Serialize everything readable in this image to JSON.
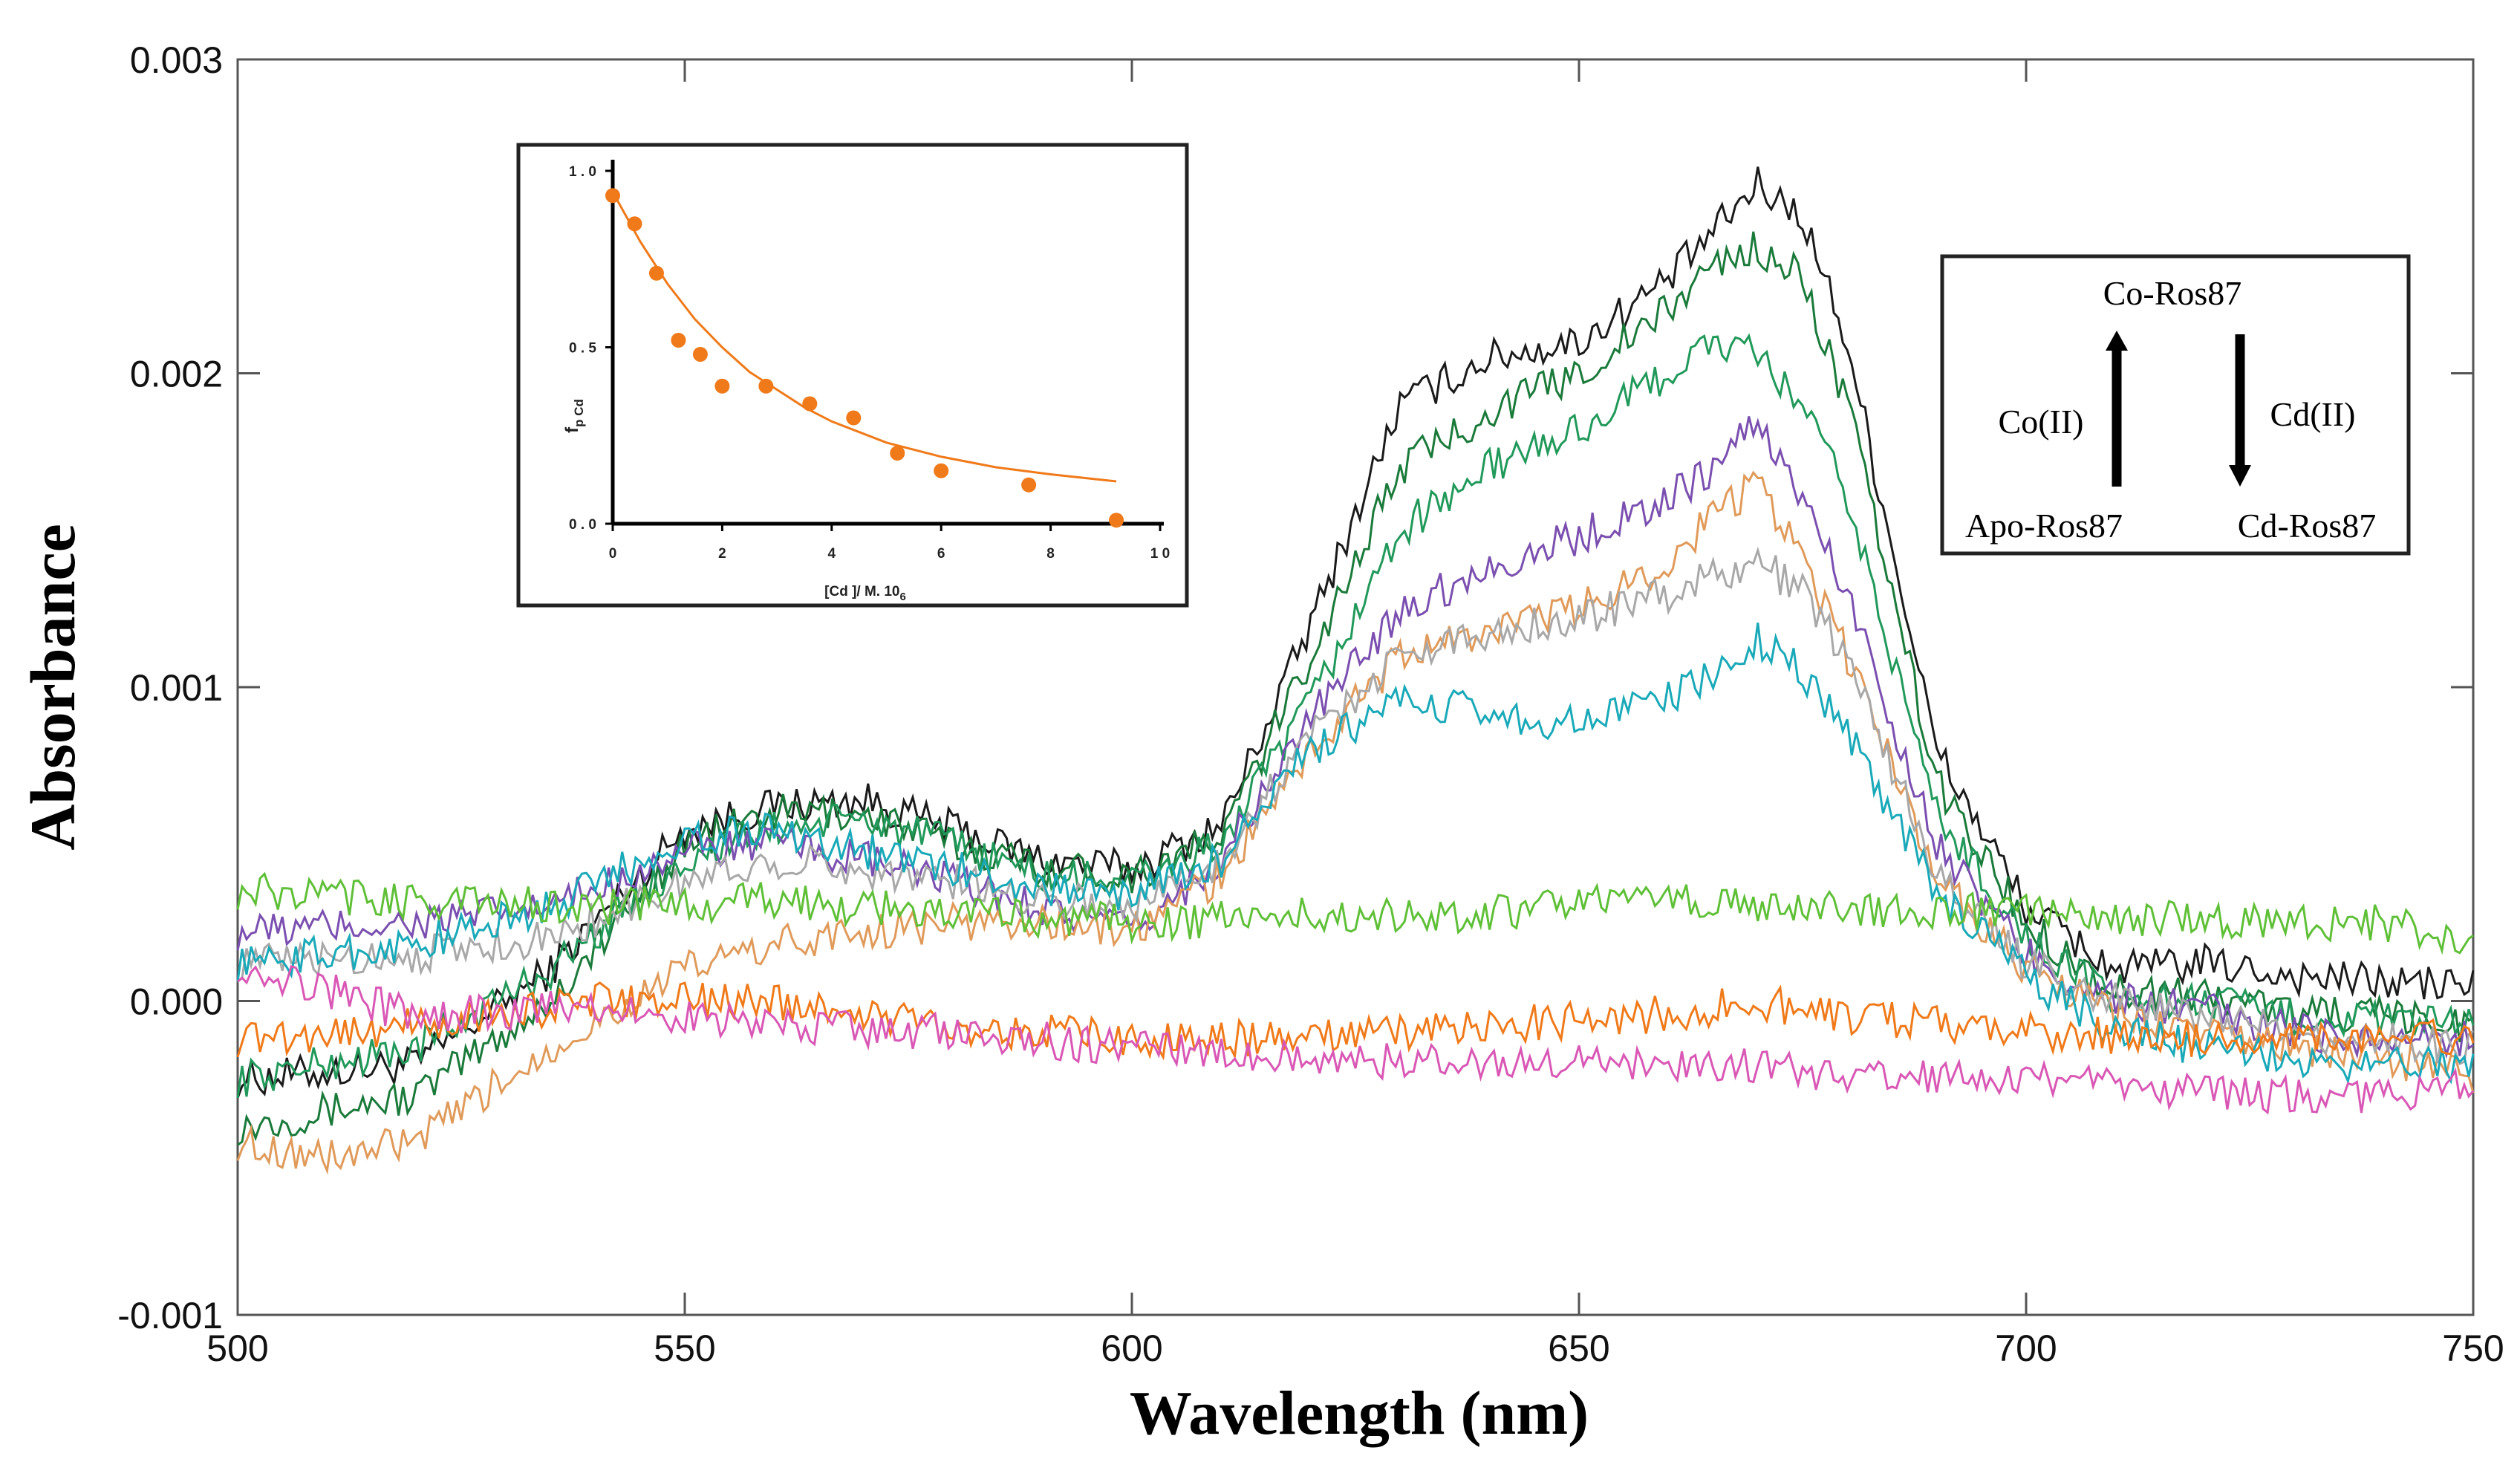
{
  "chart_data": [
    {
      "type": "line",
      "title": "",
      "xlabel": "Wavelength (nm)",
      "ylabel": "Absorbance",
      "xlim": [
        500,
        750
      ],
      "ylim": [
        -0.001,
        0.003
      ],
      "x_ticks": [
        "500",
        "550",
        "600",
        "650",
        "700",
        "750"
      ],
      "y_ticks": [
        "-0.001",
        "0.000",
        "0.001",
        "0.002",
        "0.003"
      ],
      "grid": false,
      "legend": "none",
      "series": [
        {
          "name": "black",
          "color": "#1a1a1a",
          "x": [
            500,
            520,
            535,
            550,
            560,
            570,
            580,
            590,
            600,
            610,
            620,
            630,
            640,
            650,
            660,
            665,
            670,
            675,
            680,
            690,
            700,
            710,
            720,
            730,
            740,
            750
          ],
          "y": [
            -0.00025,
            -0.0002,
            0.0001,
            0.00055,
            0.00062,
            0.00064,
            0.00055,
            0.00045,
            0.00042,
            0.00056,
            0.0012,
            0.0019,
            0.00205,
            0.0021,
            0.0023,
            0.00245,
            0.0026,
            0.0025,
            0.0021,
            0.0008,
            0.0003,
            0.0001,
            0.00012,
            8e-05,
            6e-05,
            5e-05
          ]
        },
        {
          "name": "dark green",
          "color": "#1a7a3a",
          "x": [
            500,
            520,
            535,
            550,
            560,
            570,
            580,
            590,
            600,
            610,
            620,
            630,
            640,
            650,
            660,
            665,
            670,
            675,
            680,
            690,
            700,
            710,
            720,
            730,
            740,
            750
          ],
          "y": [
            -0.0004,
            -0.0003,
            0.0,
            0.0005,
            0.0006,
            0.0006,
            0.0005,
            0.00043,
            0.0004,
            0.00052,
            0.0011,
            0.0017,
            0.00188,
            0.002,
            0.0022,
            0.00235,
            0.0024,
            0.0023,
            0.0019,
            0.0007,
            0.00025,
            3e-05,
            2e-05,
            -3e-05,
            -5e-05,
            -8e-05
          ]
        },
        {
          "name": "green",
          "color": "#20995a",
          "x": [
            500,
            520,
            535,
            550,
            560,
            570,
            580,
            590,
            600,
            610,
            620,
            630,
            640,
            650,
            660,
            665,
            670,
            675,
            680,
            690,
            700,
            710,
            720,
            730,
            740,
            750
          ],
          "y": [
            -0.00025,
            -0.00015,
            0.0001,
            0.00045,
            0.00055,
            0.00058,
            0.0005,
            0.0004,
            0.00038,
            0.0005,
            0.00095,
            0.0015,
            0.0017,
            0.00182,
            0.002,
            0.0021,
            0.00205,
            0.0019,
            0.0016,
            0.0006,
            0.0002,
            0.0,
            0.0,
            -5e-05,
            -6e-05,
            -8e-05
          ]
        },
        {
          "name": "purple",
          "color": "#7a4fb0",
          "x": [
            500,
            520,
            535,
            550,
            560,
            570,
            580,
            590,
            600,
            610,
            620,
            630,
            640,
            650,
            660,
            665,
            670,
            675,
            680,
            690,
            700,
            710,
            720,
            730,
            740,
            750
          ],
          "y": [
            0.00022,
            0.00025,
            0.0003,
            0.00048,
            0.0005,
            0.00045,
            0.00038,
            0.0003,
            0.00022,
            0.00045,
            0.0009,
            0.00125,
            0.00138,
            0.00148,
            0.0016,
            0.0017,
            0.00185,
            0.0016,
            0.0013,
            0.0005,
            0.00015,
            0.0,
            -3e-05,
            -0.0001,
            -0.00012,
            -0.00012
          ]
        },
        {
          "name": "tan orange",
          "color": "#e09a5a",
          "x": [
            500,
            510,
            520,
            535,
            550,
            560,
            570,
            580,
            590,
            600,
            610,
            620,
            630,
            640,
            650,
            660,
            665,
            670,
            675,
            680,
            690,
            700,
            710,
            720,
            730,
            740,
            750
          ],
          "y": [
            -0.00045,
            -0.0005,
            -0.00045,
            -0.00015,
            0.0001,
            0.00018,
            0.00022,
            0.00025,
            0.00025,
            0.00022,
            0.0004,
            0.0008,
            0.0011,
            0.00118,
            0.00125,
            0.0014,
            0.00155,
            0.00165,
            0.0014,
            0.0011,
            0.0004,
            0.0001,
            -5e-05,
            -0.0001,
            -0.00015,
            -0.00018,
            -0.00025
          ]
        },
        {
          "name": "grey",
          "color": "#a8a8a8",
          "x": [
            500,
            520,
            535,
            550,
            560,
            570,
            580,
            590,
            600,
            610,
            620,
            630,
            640,
            650,
            660,
            665,
            670,
            675,
            680,
            690,
            700,
            710,
            720,
            730,
            740,
            750
          ],
          "y": [
            0.00012,
            0.00015,
            0.0002,
            0.00038,
            0.00045,
            0.00042,
            0.00038,
            0.00033,
            0.0003,
            0.00045,
            0.00085,
            0.0011,
            0.00118,
            0.00122,
            0.0013,
            0.00135,
            0.0014,
            0.0013,
            0.0011,
            0.0004,
            0.00012,
            0.0,
            -5e-05,
            -0.0001,
            -0.00012,
            -0.00015
          ]
        },
        {
          "name": "teal",
          "color": "#19a9b8",
          "x": [
            500,
            520,
            535,
            550,
            560,
            570,
            580,
            590,
            600,
            610,
            620,
            630,
            640,
            650,
            660,
            665,
            670,
            675,
            680,
            690,
            700,
            710,
            720,
            730,
            740,
            750
          ],
          "y": [
            0.00012,
            0.00018,
            0.0003,
            0.00052,
            0.00055,
            0.00048,
            0.00042,
            0.00036,
            0.00034,
            0.00045,
            0.0008,
            0.00095,
            0.00092,
            0.00088,
            0.00097,
            0.00105,
            0.00115,
            0.00105,
            0.00085,
            0.00035,
            8e-05,
            -0.0001,
            -0.00015,
            -0.0002,
            -0.0002,
            -0.0002
          ]
        },
        {
          "name": "light green",
          "color": "#5fc038",
          "x": [
            500,
            520,
            540,
            560,
            580,
            600,
            620,
            640,
            660,
            670,
            680,
            700,
            720,
            740,
            750
          ],
          "y": [
            0.00035,
            0.00032,
            0.0003,
            0.00032,
            0.00028,
            0.00025,
            0.00027,
            0.00028,
            0.00033,
            0.0003,
            0.0003,
            0.00028,
            0.00026,
            0.00025,
            0.0002
          ]
        },
        {
          "name": "orange",
          "color": "#f07a1a",
          "x": [
            500,
            520,
            540,
            560,
            580,
            600,
            620,
            640,
            660,
            670,
            680,
            700,
            720,
            740,
            750
          ],
          "y": [
            -0.00012,
            -8e-05,
            0.0,
            0.0,
            -8e-05,
            -0.00012,
            -0.00012,
            -8e-05,
            -4e-05,
            0.0,
            -5e-05,
            -0.0001,
            -0.00012,
            -0.00012,
            -0.00012
          ]
        },
        {
          "name": "magenta",
          "color": "#d957b5",
          "x": [
            500,
            520,
            540,
            560,
            580,
            600,
            620,
            640,
            660,
            670,
            680,
            700,
            720,
            740,
            750
          ],
          "y": [
            0.00012,
            -5e-05,
            -2e-05,
            -8e-05,
            -0.0001,
            -0.00015,
            -0.00018,
            -0.0002,
            -0.0002,
            -0.0002,
            -0.00025,
            -0.00025,
            -0.0003,
            -0.0003,
            -0.00025
          ]
        }
      ]
    },
    {
      "type": "scatter",
      "title": "",
      "xlabel_main": "[Cd ]/ M. 10",
      "xlabel_sub": "6",
      "ylabel_main": "f",
      "ylabel_sub": "p Cd",
      "xlim": [
        0,
        10
      ],
      "ylim": [
        0,
        1.0
      ],
      "x_ticks": [
        "0",
        "2",
        "4",
        "6",
        "8",
        "1 0"
      ],
      "y_ticks": [
        "0 . 0",
        "0 . 5",
        "1 . 0"
      ],
      "point_color": "#f07a1a",
      "points": {
        "x": [
          0.0,
          0.4,
          0.8,
          1.2,
          1.6,
          2.0,
          2.8,
          3.6,
          4.4,
          5.2,
          6.0,
          7.6,
          9.2
        ],
        "y": [
          0.93,
          0.85,
          0.71,
          0.52,
          0.48,
          0.39,
          0.39,
          0.34,
          0.3,
          0.2,
          0.15,
          0.11,
          0.01
        ]
      },
      "fit_curve": {
        "x": [
          0,
          0.5,
          1,
          1.5,
          2,
          2.5,
          3,
          3.5,
          4,
          5,
          6,
          7,
          8,
          9.2
        ],
        "y": [
          0.94,
          0.8,
          0.68,
          0.58,
          0.5,
          0.43,
          0.38,
          0.33,
          0.29,
          0.23,
          0.19,
          0.16,
          0.14,
          0.12
        ]
      }
    }
  ],
  "scheme": {
    "top": "Co-Ros87",
    "bottom_left": "Apo-Ros87",
    "bottom_right": "Cd-Ros87",
    "left_arrow_label": "Co(II)",
    "right_arrow_label": "Cd(II)"
  }
}
